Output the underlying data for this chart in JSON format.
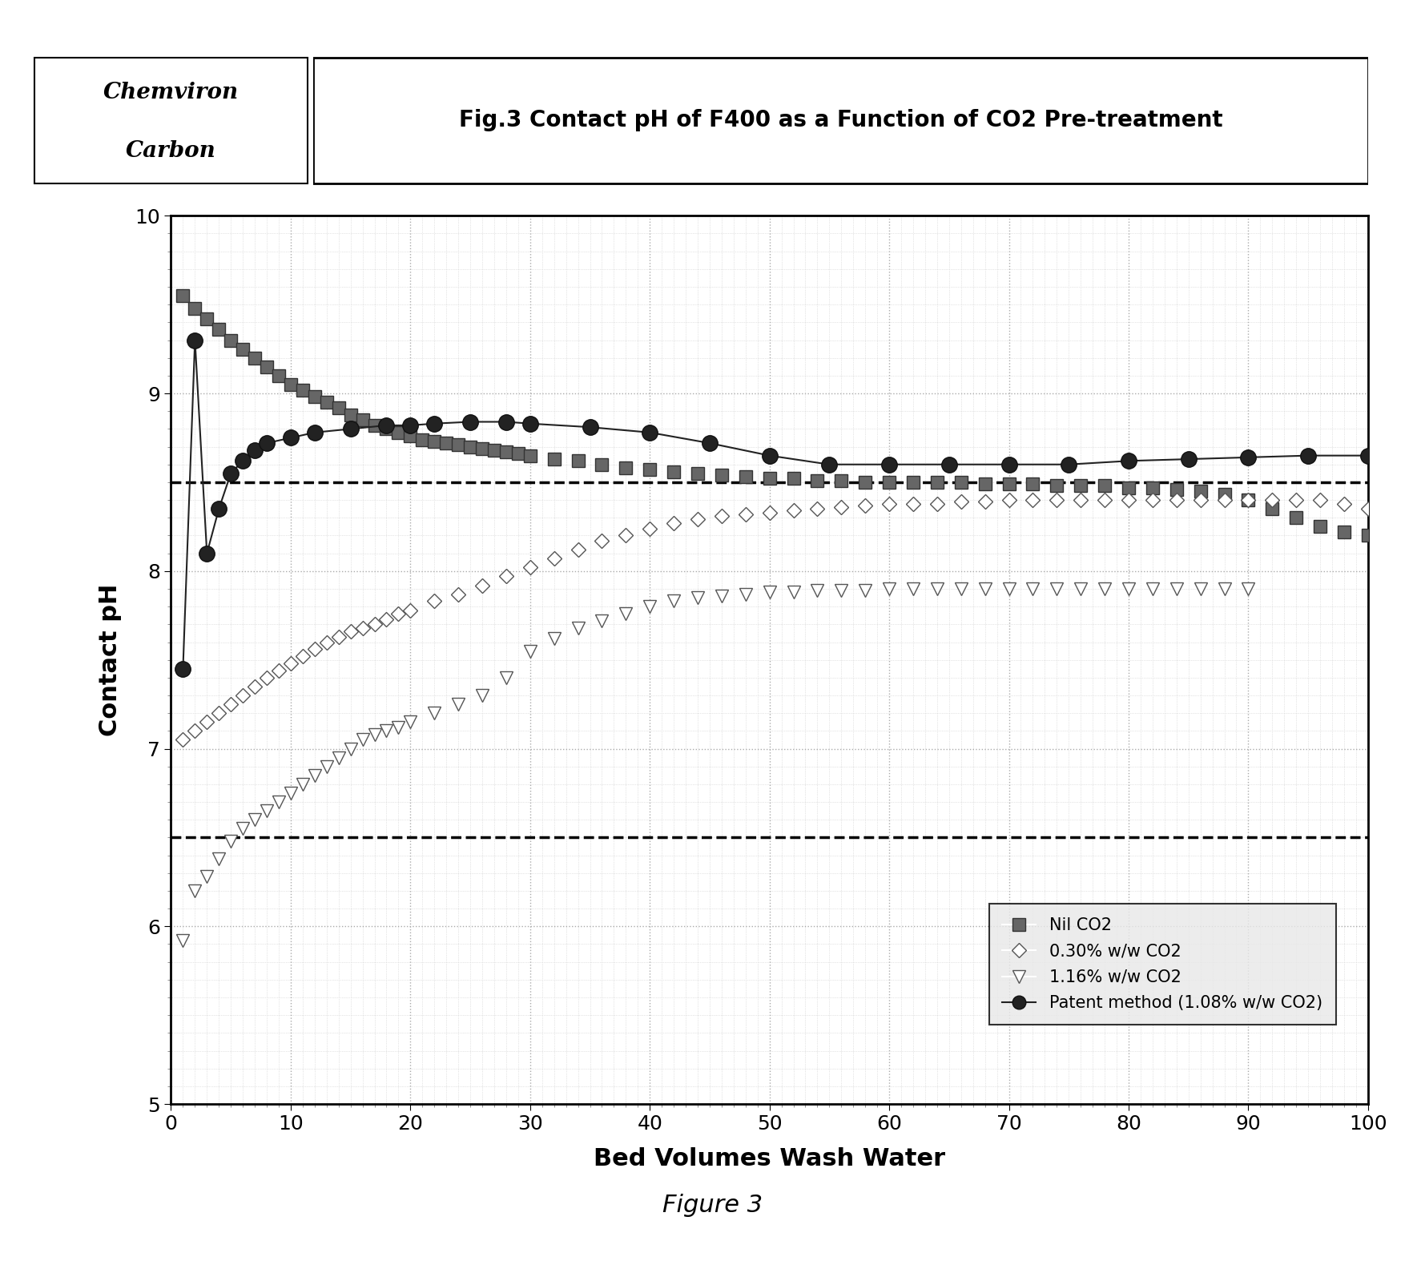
{
  "title": "Fig.3 Contact pH of F400 as a Function of CO2 Pre-treatment",
  "xlabel": "Bed Volumes Wash Water",
  "ylabel": "Contact pH",
  "figure_caption": "Figure 3",
  "xlim": [
    0,
    100
  ],
  "ylim": [
    5,
    10
  ],
  "yticks": [
    5,
    6,
    7,
    8,
    9,
    10
  ],
  "xticks": [
    0,
    10,
    20,
    30,
    40,
    50,
    60,
    70,
    80,
    90,
    100
  ],
  "hline1": 8.5,
  "hline2": 6.5,
  "nil_co2_x": [
    1,
    2,
    3,
    4,
    5,
    6,
    7,
    8,
    9,
    10,
    11,
    12,
    13,
    14,
    15,
    16,
    17,
    18,
    19,
    20,
    21,
    22,
    23,
    24,
    25,
    26,
    27,
    28,
    29,
    30,
    32,
    34,
    36,
    38,
    40,
    42,
    44,
    46,
    48,
    50,
    52,
    54,
    56,
    58,
    60,
    62,
    64,
    66,
    68,
    70,
    72,
    74,
    76,
    78,
    80,
    82,
    84,
    86,
    88,
    90,
    92,
    94,
    96,
    98,
    100
  ],
  "nil_co2_y": [
    9.55,
    9.48,
    9.42,
    9.36,
    9.3,
    9.25,
    9.2,
    9.15,
    9.1,
    9.05,
    9.02,
    8.98,
    8.95,
    8.92,
    8.88,
    8.85,
    8.82,
    8.8,
    8.78,
    8.76,
    8.74,
    8.73,
    8.72,
    8.71,
    8.7,
    8.69,
    8.68,
    8.67,
    8.66,
    8.65,
    8.63,
    8.62,
    8.6,
    8.58,
    8.57,
    8.56,
    8.55,
    8.54,
    8.53,
    8.52,
    8.52,
    8.51,
    8.51,
    8.5,
    8.5,
    8.5,
    8.5,
    8.5,
    8.49,
    8.49,
    8.49,
    8.48,
    8.48,
    8.48,
    8.47,
    8.47,
    8.46,
    8.45,
    8.43,
    8.4,
    8.35,
    8.3,
    8.25,
    8.22,
    8.2
  ],
  "co2_030_x": [
    1,
    2,
    3,
    4,
    5,
    6,
    7,
    8,
    9,
    10,
    11,
    12,
    13,
    14,
    15,
    16,
    17,
    18,
    19,
    20,
    22,
    24,
    26,
    28,
    30,
    32,
    34,
    36,
    38,
    40,
    42,
    44,
    46,
    48,
    50,
    52,
    54,
    56,
    58,
    60,
    62,
    64,
    66,
    68,
    70,
    72,
    74,
    76,
    78,
    80,
    82,
    84,
    86,
    88,
    90,
    92,
    94,
    96,
    98,
    100
  ],
  "co2_030_y": [
    7.05,
    7.1,
    7.15,
    7.2,
    7.25,
    7.3,
    7.35,
    7.4,
    7.44,
    7.48,
    7.52,
    7.56,
    7.6,
    7.63,
    7.66,
    7.68,
    7.7,
    7.73,
    7.76,
    7.78,
    7.83,
    7.87,
    7.92,
    7.97,
    8.02,
    8.07,
    8.12,
    8.17,
    8.2,
    8.24,
    8.27,
    8.29,
    8.31,
    8.32,
    8.33,
    8.34,
    8.35,
    8.36,
    8.37,
    8.38,
    8.38,
    8.38,
    8.39,
    8.39,
    8.4,
    8.4,
    8.4,
    8.4,
    8.4,
    8.4,
    8.4,
    8.4,
    8.4,
    8.4,
    8.4,
    8.4,
    8.4,
    8.4,
    8.38,
    8.35
  ],
  "co2_116_x": [
    1,
    2,
    3,
    4,
    5,
    6,
    7,
    8,
    9,
    10,
    11,
    12,
    13,
    14,
    15,
    16,
    17,
    18,
    19,
    20,
    22,
    24,
    26,
    28,
    30,
    32,
    34,
    36,
    38,
    40,
    42,
    44,
    46,
    48,
    50,
    52,
    54,
    56,
    58,
    60,
    62,
    64,
    66,
    68,
    70,
    72,
    74,
    76,
    78,
    80,
    82,
    84,
    86,
    88,
    90
  ],
  "co2_116_y": [
    5.92,
    6.2,
    6.28,
    6.38,
    6.48,
    6.55,
    6.6,
    6.65,
    6.7,
    6.75,
    6.8,
    6.85,
    6.9,
    6.95,
    7.0,
    7.05,
    7.08,
    7.1,
    7.12,
    7.15,
    7.2,
    7.25,
    7.3,
    7.4,
    7.55,
    7.62,
    7.68,
    7.72,
    7.76,
    7.8,
    7.83,
    7.85,
    7.86,
    7.87,
    7.88,
    7.88,
    7.89,
    7.89,
    7.89,
    7.9,
    7.9,
    7.9,
    7.9,
    7.9,
    7.9,
    7.9,
    7.9,
    7.9,
    7.9,
    7.9,
    7.9,
    7.9,
    7.9,
    7.9,
    7.9
  ],
  "patent_x": [
    1,
    2,
    3,
    4,
    5,
    6,
    7,
    8,
    10,
    12,
    15,
    18,
    20,
    22,
    25,
    28,
    30,
    35,
    40,
    45,
    50,
    55,
    60,
    65,
    70,
    75,
    80,
    85,
    90,
    95,
    100
  ],
  "patent_y": [
    7.45,
    9.3,
    8.1,
    8.35,
    8.55,
    8.62,
    8.68,
    8.72,
    8.75,
    8.78,
    8.8,
    8.82,
    8.82,
    8.83,
    8.84,
    8.84,
    8.83,
    8.81,
    8.78,
    8.72,
    8.65,
    8.6,
    8.6,
    8.6,
    8.6,
    8.6,
    8.62,
    8.63,
    8.64,
    8.65,
    8.65
  ],
  "legend_labels": [
    "Nil CO2",
    "0.30% w/w CO2",
    "1.16% w/w CO2",
    "Patent method (1.08% w/w CO2)"
  ]
}
